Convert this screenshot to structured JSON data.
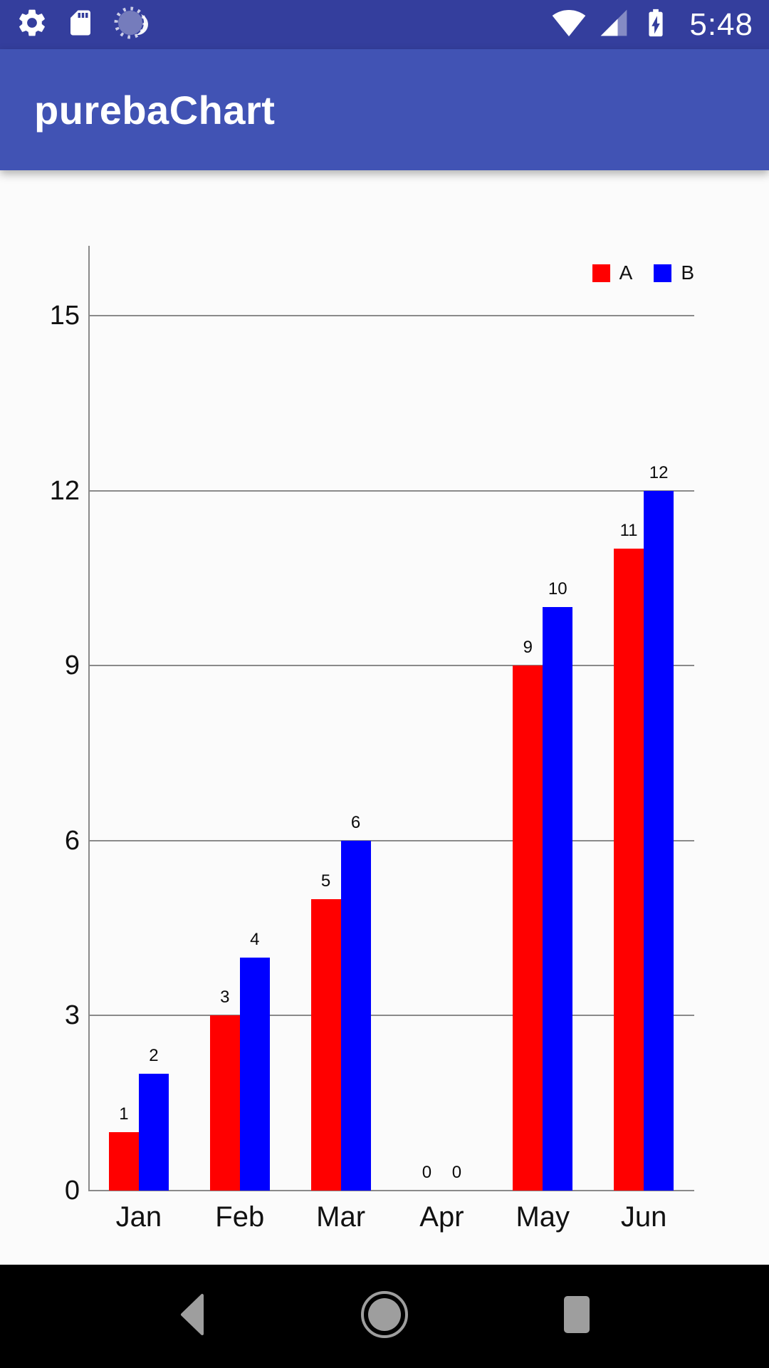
{
  "status_bar": {
    "time": "5:48",
    "background": "#343e9d",
    "left_icons": [
      "settings-icon",
      "sd-card-icon",
      "sync-spinner-icon"
    ],
    "right_icons": [
      "wifi-icon",
      "cell-signal-icon",
      "battery-charging-icon"
    ]
  },
  "app_bar": {
    "title": "purebaChart",
    "background": "#4153b4"
  },
  "chart_data": {
    "type": "bar",
    "title": "",
    "categories": [
      "Jan",
      "Feb",
      "Mar",
      "Apr",
      "May",
      "Jun"
    ],
    "series": [
      {
        "name": "A",
        "color": "#ff0000",
        "values": [
          1,
          3,
          5,
          0,
          9,
          11
        ]
      },
      {
        "name": "B",
        "color": "#0000ff",
        "values": [
          2,
          4,
          6,
          0,
          10,
          12
        ]
      }
    ],
    "y_ticks": [
      0,
      3,
      6,
      9,
      12,
      15
    ],
    "ylim": [
      0,
      16.2
    ],
    "xlabel": "",
    "ylabel": "",
    "grid": true,
    "grid_color": "#8a8a8a",
    "legend_position": "top-right",
    "bar_value_labels": true
  },
  "nav_bar": {
    "background": "#000000",
    "icons": [
      "back-icon",
      "home-icon",
      "recents-icon"
    ]
  }
}
